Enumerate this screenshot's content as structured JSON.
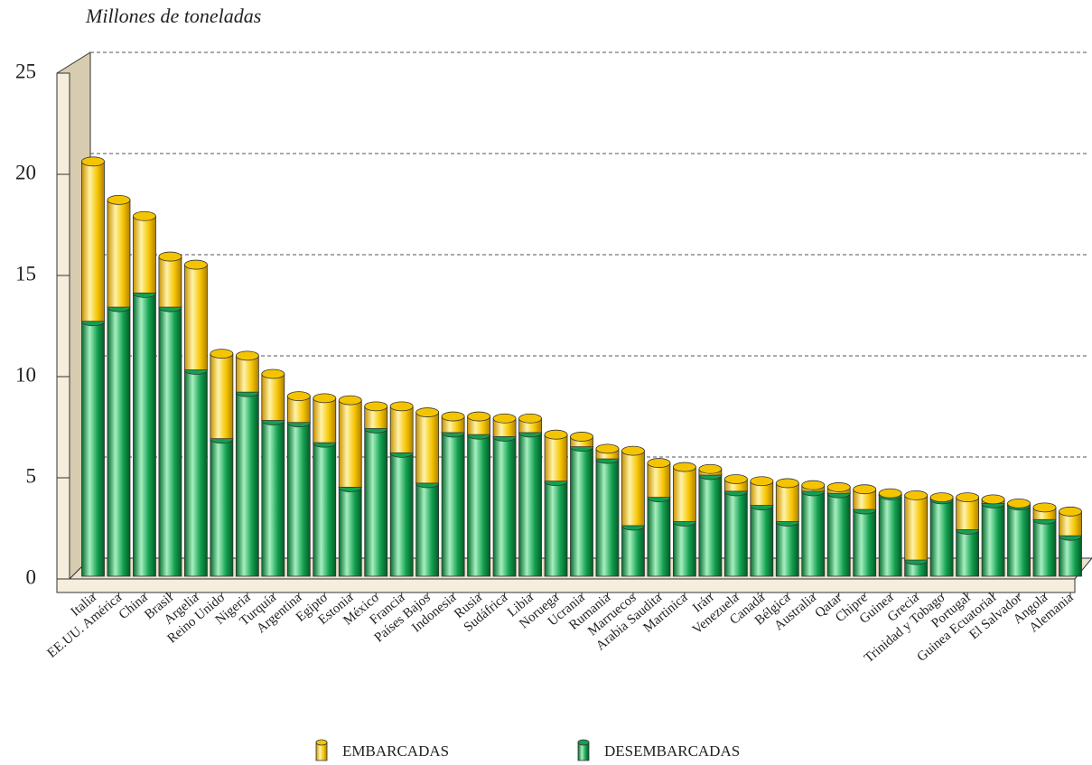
{
  "chart_data": {
    "type": "bar",
    "stacked": true,
    "y_label": "Millones de toneladas",
    "categories": [
      "Italia",
      "EE.UU. América",
      "China",
      "Brasil",
      "Argelia",
      "Reino Unido",
      "Nigeria",
      "Turquía",
      "Argentina",
      "Egipto",
      "Estonia",
      "México",
      "Francia",
      "Países Bajos",
      "Indonesia",
      "Rusia",
      "Sudáfrica",
      "Libia",
      "Noruega",
      "Ucrania",
      "Rumania",
      "Marruecos",
      "Arabia Saudita",
      "Martinica",
      "Irán",
      "Venezuela",
      "Canadá",
      "Bélgica",
      "Australia",
      "Qatar",
      "Chipre",
      "Guinea",
      "Grecia",
      "Trinidad y Tobago",
      "Portugal",
      "Guinea Ecuatorial",
      "El Salvador",
      "Angola",
      "Alemania"
    ],
    "series": [
      {
        "name": "EMBARCADAS",
        "color": "#f5c400",
        "values": [
          7.9,
          5.3,
          3.8,
          2.5,
          5.2,
          4.2,
          1.8,
          2.3,
          1.3,
          2.2,
          4.3,
          1.1,
          2.3,
          3.5,
          0.8,
          0.9,
          0.9,
          0.7,
          2.3,
          0.5,
          0.5,
          3.7,
          1.7,
          2.7,
          0.3,
          0.6,
          1.2,
          1.9,
          0.3,
          0.3,
          1.0,
          0.1,
          3.2,
          0.1,
          1.6,
          0.2,
          0.1,
          0.6,
          1.2
        ]
      },
      {
        "name": "DESEMBARCADAS",
        "color": "#13a050",
        "values": [
          12.6,
          13.3,
          14.0,
          13.3,
          10.2,
          6.8,
          9.1,
          7.7,
          7.6,
          6.6,
          4.4,
          7.3,
          6.1,
          4.6,
          7.1,
          7.0,
          6.9,
          7.1,
          4.7,
          6.4,
          5.8,
          2.5,
          3.9,
          2.7,
          5.0,
          4.2,
          3.5,
          2.7,
          4.2,
          4.1,
          3.3,
          4.0,
          0.8,
          3.8,
          2.3,
          3.6,
          3.5,
          2.8,
          2.0
        ]
      }
    ],
    "ylim": [
      0,
      25
    ],
    "yticks": [
      0,
      5,
      10,
      15,
      20,
      25
    ],
    "grid": true
  }
}
